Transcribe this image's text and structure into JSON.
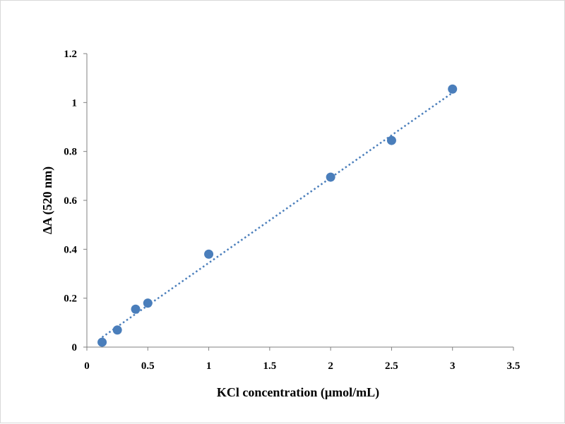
{
  "chart_data": {
    "type": "scatter",
    "xlabel": "KCl concentration (μmol/mL)",
    "ylabel": "ΔA (520 nm)",
    "xlim": [
      0,
      3.5
    ],
    "ylim": [
      0,
      1.2
    ],
    "x_ticks": [
      "0",
      "0.5",
      "1",
      "1.5",
      "2",
      "2.5",
      "3",
      "3.5"
    ],
    "y_ticks": [
      "0",
      "0.2",
      "0.4",
      "0.6",
      "0.8",
      "1",
      "1.2"
    ],
    "grid": false,
    "legend": "none",
    "series": [
      {
        "x": [
          0.125,
          0.25,
          0.4,
          0.5,
          1,
          2,
          2.5,
          3
        ],
        "y": [
          0.02,
          0.07,
          0.155,
          0.18,
          0.38,
          0.695,
          0.845,
          1.055
        ],
        "marker": "circle",
        "color": "#4a7ebb"
      }
    ],
    "trendline": {
      "style": "dotted",
      "color": "#4a7ebb",
      "x": [
        0.125,
        3
      ],
      "y": [
        0.04,
        1.04
      ]
    }
  }
}
